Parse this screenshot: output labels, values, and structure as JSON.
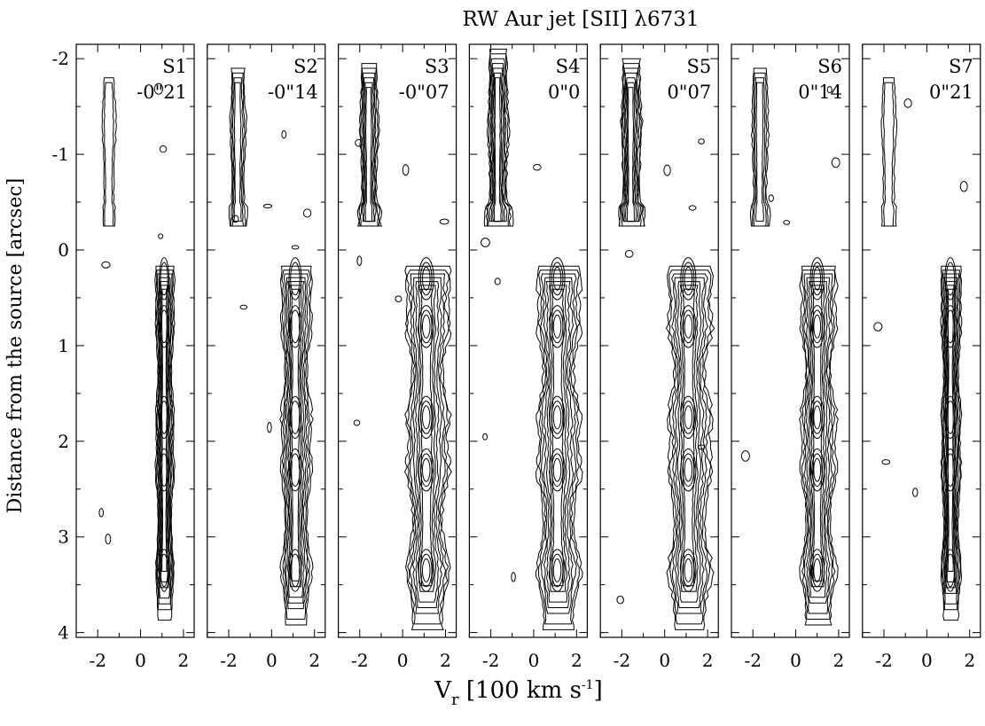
{
  "chart_data": {
    "type": "contour",
    "title": "RW Aur jet [SII] λ6731",
    "xlabel": {
      "main": "V",
      "sub": "r",
      "rest_a": " [100 km s",
      "sup": "-1",
      "rest_b": "]"
    },
    "ylabel": "Distance from the source [arcsec]",
    "xlim": [
      -3,
      2.5
    ],
    "ylim": [
      -2.15,
      4.05
    ],
    "y_inverted": true,
    "x_ticks": [
      -2,
      0,
      2
    ],
    "x_tick_labels": [
      "-2",
      "0",
      "2"
    ],
    "y_ticks": [
      -2,
      -1,
      0,
      1,
      2,
      3,
      4
    ],
    "y_tick_labels": [
      "-2",
      "-1",
      "0",
      "1",
      "2",
      "3",
      "4"
    ],
    "panels": [
      {
        "label": "S1",
        "offset": "-0\"21",
        "redshifted_peak_x": 1.0,
        "redshifted_width": 0.35,
        "redshifted_strength": 0.55,
        "blueshifted_peak_x": -1.5,
        "blueshifted_strength": 0.25,
        "blue_extent": [
          -1.8,
          -0.7
        ]
      },
      {
        "label": "S2",
        "offset": "-0\"14",
        "redshifted_peak_x": 1.0,
        "redshifted_width": 0.45,
        "redshifted_strength": 0.8,
        "blueshifted_peak_x": -1.6,
        "blueshifted_strength": 0.5,
        "blue_extent": [
          -1.9,
          -0.3
        ]
      },
      {
        "label": "S3",
        "offset": "-0\"07",
        "redshifted_peak_x": 1.0,
        "redshifted_width": 0.55,
        "redshifted_strength": 1.0,
        "blueshifted_peak_x": -1.6,
        "blueshifted_strength": 0.8,
        "blue_extent": [
          -1.95,
          -0.2
        ]
      },
      {
        "label": "S4",
        "offset": "0\"0",
        "redshifted_peak_x": 1.0,
        "redshifted_width": 0.55,
        "redshifted_strength": 1.0,
        "blueshifted_peak_x": -1.7,
        "blueshifted_strength": 1.0,
        "blue_extent": [
          -2.1,
          -0.2
        ]
      },
      {
        "label": "S5",
        "offset": "0\"07",
        "redshifted_peak_x": 1.0,
        "redshifted_width": 0.55,
        "redshifted_strength": 1.0,
        "blueshifted_peak_x": -1.6,
        "blueshifted_strength": 1.0,
        "blue_extent": [
          -2.0,
          -0.2
        ]
      },
      {
        "label": "S6",
        "offset": "0\"14",
        "redshifted_peak_x": 0.9,
        "redshifted_width": 0.5,
        "redshifted_strength": 0.85,
        "blueshifted_peak_x": -1.7,
        "blueshifted_strength": 0.6,
        "blue_extent": [
          -1.9,
          -0.2
        ]
      },
      {
        "label": "S7",
        "offset": "0\"21",
        "redshifted_peak_x": 1.0,
        "redshifted_width": 0.4,
        "redshifted_strength": 0.5,
        "blueshifted_peak_x": -1.8,
        "blueshifted_strength": 0.35,
        "blue_extent": [
          -1.8,
          -0.3
        ]
      }
    ],
    "redshifted_knots_arcsec": [
      0.3,
      0.8,
      1.75,
      2.3,
      3.35
    ],
    "contour_levels": 7,
    "grid": false
  }
}
